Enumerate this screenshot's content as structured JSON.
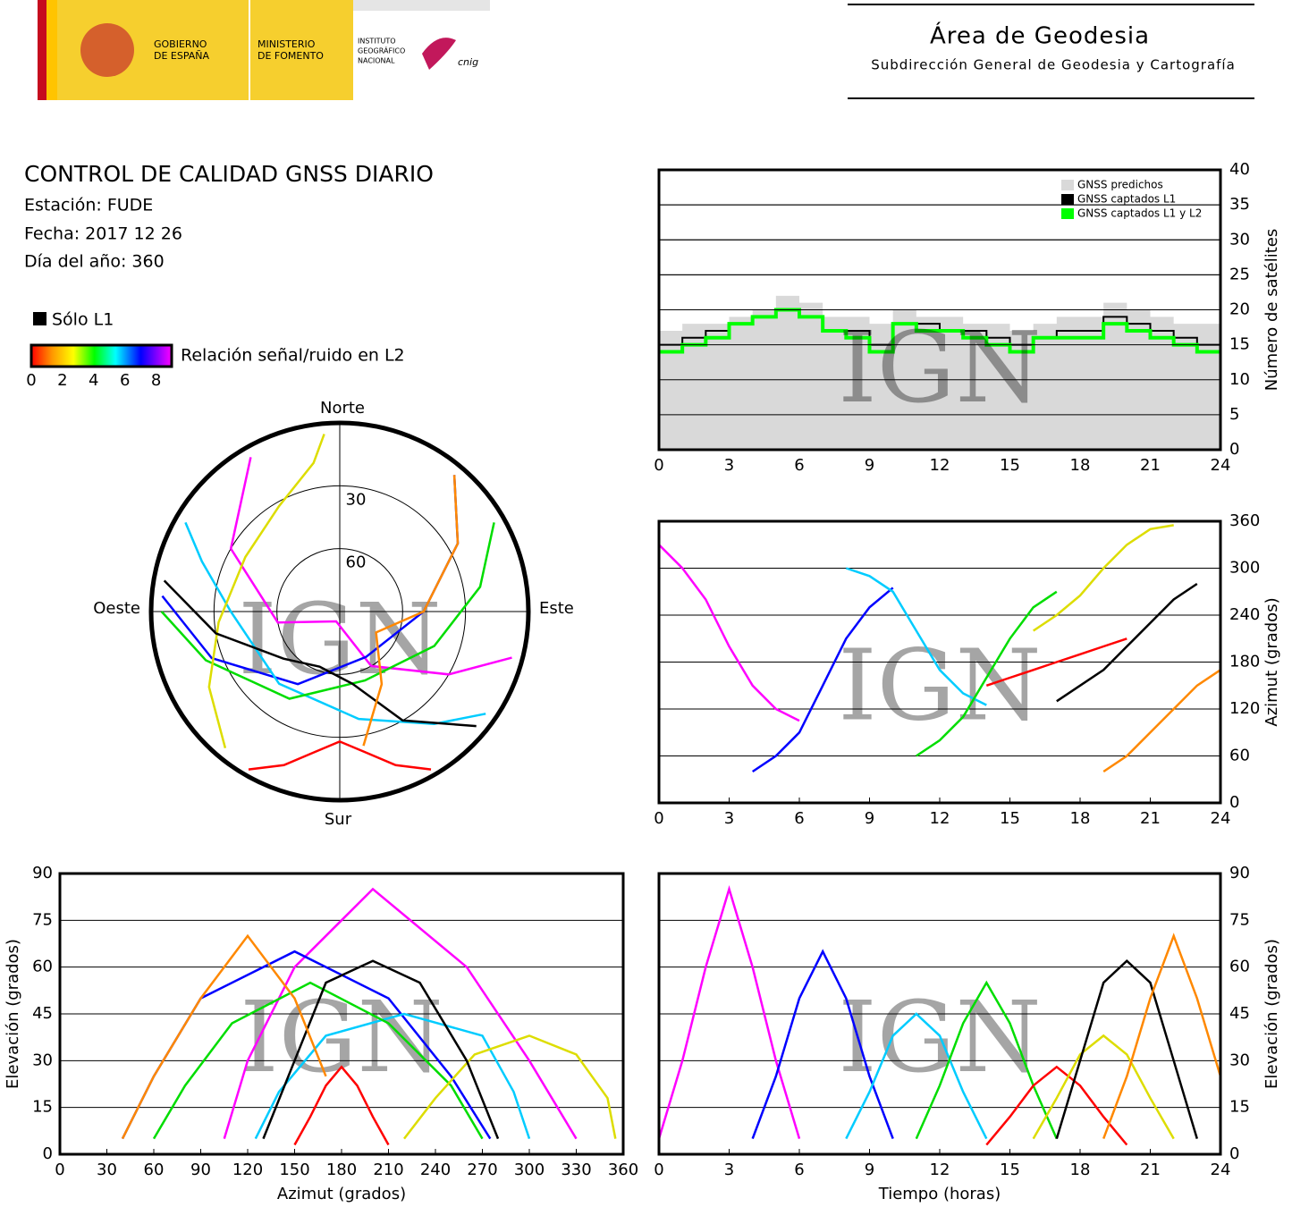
{
  "header": {
    "gobierno": [
      "GOBIERNO",
      "DE ESPAÑA"
    ],
    "ministerio": [
      "MINISTERIO",
      "DE FOMENTO"
    ],
    "instituto": [
      "INSTITUTO",
      "GEOGRÁFICO",
      "NACIONAL"
    ],
    "cnig": "cnig",
    "area": "Área de Geodesia",
    "subdireccion": "Subdirección General de Geodesia y Cartografía"
  },
  "report": {
    "title": "CONTROL DE CALIDAD GNSS DIARIO",
    "station": "Estación: FUDE",
    "date": "Fecha: 2017 12 26",
    "doy": "Día del año: 360"
  },
  "legend": {
    "l1_only": "Sólo L1",
    "snr_label": "Relación señal/ruido en L2",
    "snr_ticks": [
      0,
      2,
      4,
      6,
      8
    ],
    "snr_lim": [
      0,
      9
    ]
  },
  "watermark": "IGN",
  "satellites": [
    {
      "color": "#ff00ff",
      "hours": [
        0,
        1,
        2,
        3,
        4,
        5,
        6
      ],
      "azimuth": [
        330,
        300,
        260,
        200,
        150,
        120,
        105
      ],
      "elevation": [
        5,
        30,
        60,
        85,
        60,
        30,
        5
      ]
    },
    {
      "color": "#0000ff",
      "hours": [
        4,
        5,
        6,
        7,
        8,
        9,
        10
      ],
      "azimuth": [
        40,
        60,
        90,
        150,
        210,
        250,
        275
      ],
      "elevation": [
        5,
        25,
        50,
        65,
        50,
        25,
        5
      ]
    },
    {
      "color": "#00ccff",
      "hours": [
        8,
        9,
        10,
        11,
        12,
        13,
        14
      ],
      "azimuth": [
        300,
        290,
        270,
        220,
        170,
        140,
        125
      ],
      "elevation": [
        5,
        20,
        38,
        45,
        38,
        20,
        5
      ]
    },
    {
      "color": "#00dd00",
      "hours": [
        11,
        12,
        13,
        14,
        15,
        16,
        17
      ],
      "azimuth": [
        60,
        80,
        110,
        160,
        210,
        250,
        270
      ],
      "elevation": [
        5,
        22,
        42,
        55,
        42,
        22,
        5
      ]
    },
    {
      "color": "#ff0000",
      "hours": [
        14,
        15,
        16,
        17,
        18,
        19,
        20
      ],
      "azimuth": [
        150,
        160,
        170,
        180,
        190,
        200,
        210
      ],
      "elevation": [
        3,
        12,
        22,
        28,
        22,
        12,
        3
      ]
    },
    {
      "color": "#dddd00",
      "hours": [
        16,
        17,
        18,
        19,
        20,
        21,
        22
      ],
      "azimuth": [
        220,
        240,
        265,
        300,
        330,
        350,
        355
      ],
      "elevation": [
        5,
        18,
        32,
        38,
        32,
        18,
        5
      ]
    },
    {
      "color": "#000000",
      "hours": [
        17,
        18,
        19,
        20,
        21,
        22,
        23
      ],
      "azimuth": [
        130,
        150,
        170,
        200,
        230,
        260,
        280
      ],
      "elevation": [
        5,
        30,
        55,
        62,
        55,
        30,
        5
      ]
    },
    {
      "color": "#ff8800",
      "hours": [
        19,
        20,
        21,
        22,
        23,
        24
      ],
      "azimuth": [
        40,
        60,
        90,
        120,
        150,
        170
      ],
      "elevation": [
        5,
        25,
        50,
        70,
        50,
        25
      ]
    }
  ],
  "chart_data": [
    {
      "type": "polar",
      "directions": {
        "north": "Norte",
        "south": "Sur",
        "east": "Este",
        "west": "Oeste"
      },
      "rticks": [
        30,
        60
      ],
      "rlim": [
        0,
        90
      ]
    },
    {
      "type": "step",
      "ylabel": "Número de satélites",
      "y_side": "right",
      "grid": true,
      "legend": "top-right",
      "x": [
        0,
        1,
        2,
        3,
        4,
        5,
        6,
        7,
        8,
        9,
        10,
        11,
        12,
        13,
        14,
        15,
        16,
        17,
        18,
        19,
        20,
        21,
        22,
        23,
        24
      ],
      "xlim": [
        0,
        24
      ],
      "xticks": [
        0,
        3,
        6,
        9,
        12,
        15,
        18,
        21,
        24
      ],
      "ylim": [
        0,
        40
      ],
      "yticks": [
        0,
        5,
        10,
        15,
        20,
        25,
        30,
        35,
        40
      ],
      "series": [
        {
          "name": "GNSS predichos",
          "color": "#d9d9d9",
          "style": "area",
          "values": [
            17,
            18,
            18,
            19,
            20,
            22,
            21,
            19,
            19,
            18,
            20,
            19,
            19,
            18,
            18,
            17,
            18,
            19,
            19,
            21,
            20,
            19,
            18,
            18,
            17
          ]
        },
        {
          "name": "GNSS captados L1",
          "color": "#000000",
          "style": "line",
          "values": [
            15,
            16,
            17,
            18,
            19,
            20,
            19,
            17,
            17,
            15,
            18,
            18,
            17,
            17,
            16,
            15,
            16,
            17,
            17,
            19,
            18,
            17,
            16,
            15,
            15
          ]
        },
        {
          "name": "GNSS captados L1 y L2",
          "color": "#00ff00",
          "style": "line",
          "values": [
            14,
            15,
            16,
            18,
            19,
            20,
            19,
            17,
            16,
            14,
            18,
            17,
            17,
            16,
            15,
            14,
            16,
            16,
            16,
            18,
            17,
            16,
            15,
            14,
            14
          ]
        }
      ]
    },
    {
      "type": "track",
      "x_field": "hours",
      "y_field": "azimuth",
      "ylabel": "Azimut (grados)",
      "y_side": "right",
      "grid": true,
      "xlim": [
        0,
        24
      ],
      "xticks": [
        0,
        3,
        6,
        9,
        12,
        15,
        18,
        21,
        24
      ],
      "ylim": [
        0,
        360
      ],
      "yticks": [
        0,
        60,
        120,
        180,
        240,
        300,
        360
      ]
    },
    {
      "type": "track",
      "x_field": "azimuth",
      "y_field": "elevation",
      "xlabel": "Azimut (grados)",
      "ylabel": "Elevación (grados)",
      "y_side": "left",
      "grid": true,
      "xlim": [
        0,
        360
      ],
      "xticks": [
        0,
        30,
        60,
        90,
        120,
        150,
        180,
        210,
        240,
        270,
        300,
        330,
        360
      ],
      "ylim": [
        0,
        90
      ],
      "yticks": [
        0,
        15,
        30,
        45,
        60,
        75,
        90
      ]
    },
    {
      "type": "track",
      "x_field": "hours",
      "y_field": "elevation",
      "xlabel": "Tiempo (horas)",
      "ylabel": "Elevación (grados)",
      "y_side": "right",
      "grid": true,
      "xlim": [
        0,
        24
      ],
      "xticks": [
        0,
        3,
        6,
        9,
        12,
        15,
        18,
        21,
        24
      ],
      "ylim": [
        0,
        90
      ],
      "yticks": [
        0,
        15,
        30,
        45,
        60,
        75,
        90
      ]
    }
  ]
}
